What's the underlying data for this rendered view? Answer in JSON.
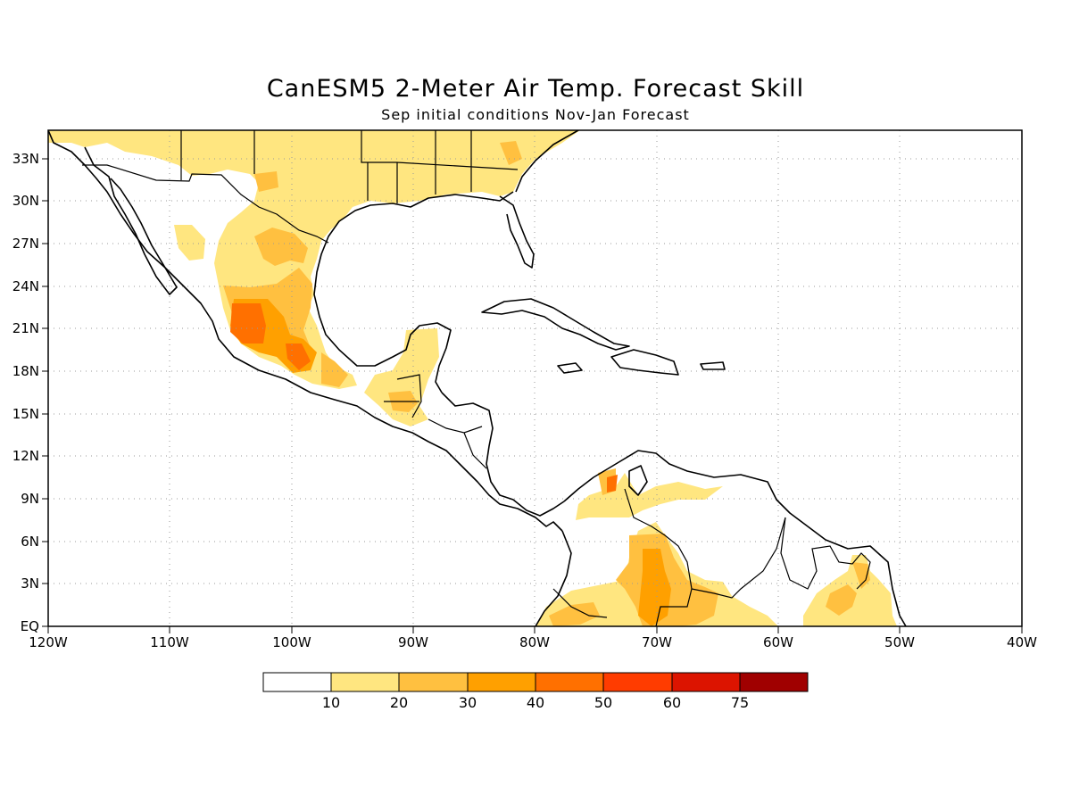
{
  "title": "CanESM5 2-Meter Air Temp. Forecast Skill",
  "subtitle": "Sep initial conditions  Nov-Jan Forecast",
  "map": {
    "lon_range": [
      -120,
      -40
    ],
    "lat_range": [
      0,
      35
    ],
    "x_ticks": [
      "120W",
      "110W",
      "100W",
      "90W",
      "80W",
      "70W",
      "60W",
      "50W",
      "40W"
    ],
    "y_ticks": [
      "EQ",
      "3N",
      "6N",
      "9N",
      "12N",
      "15N",
      "18N",
      "21N",
      "24N",
      "27N",
      "30N",
      "33N"
    ],
    "grid": true
  },
  "colorbar": {
    "labels": [
      "10",
      "20",
      "30",
      "40",
      "50",
      "60",
      "75"
    ],
    "colors": [
      "#ffffff",
      "#ffe680",
      "#ffc040",
      "#ffa000",
      "#ff7000",
      "#ff3c00",
      "#dc1400",
      "#a00000"
    ]
  }
}
